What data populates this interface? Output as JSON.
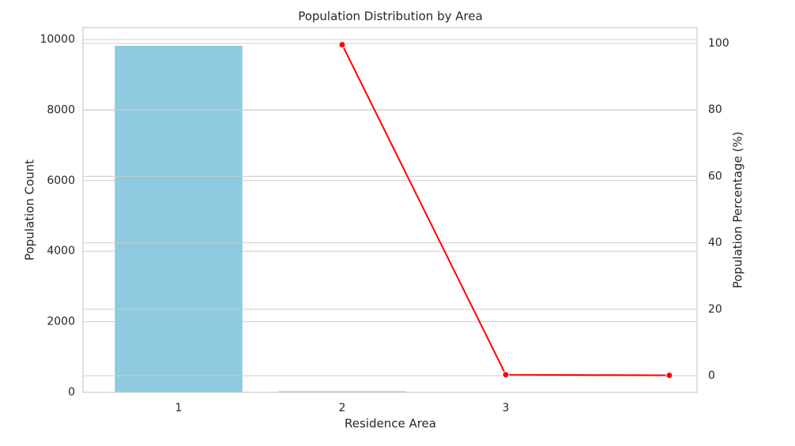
{
  "chart_data": {
    "type": "bar-line",
    "title": "Population Distribution by Area",
    "xlabel": "Residence Area",
    "ylabel": "Population Count",
    "y2label": "Population Percentage (%)",
    "categories": [
      "1",
      "2",
      "3",
      null
    ],
    "series": [
      {
        "type": "bar",
        "color": "#8ecae0",
        "values": [
          9820,
          30,
          10,
          null
        ]
      },
      {
        "type": "line",
        "color": "#ff0000",
        "axis": "y2",
        "values": [
          null,
          99.6,
          0.3,
          0.1
        ]
      }
    ],
    "ylim": [
      0,
      10335
    ],
    "yticks": [
      0,
      2000,
      4000,
      6000,
      8000,
      10000
    ],
    "y2lim": [
      -5,
      104.75
    ],
    "y2ticks": [
      0,
      20,
      40,
      60,
      80,
      100
    ],
    "grid": true
  }
}
